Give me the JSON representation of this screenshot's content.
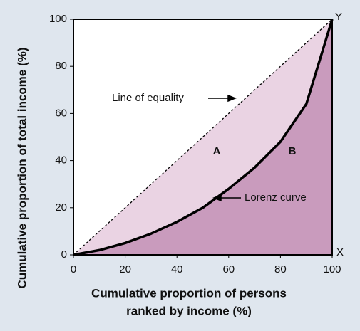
{
  "chart_data": {
    "type": "lorenz",
    "x_label": [
      "Cumulative proportion of persons",
      "ranked by income (%)"
    ],
    "y_label": "Cumulative proportion of total income (%)",
    "xlim": [
      0,
      100
    ],
    "ylim": [
      0,
      100
    ],
    "xticks": [
      0,
      20,
      40,
      60,
      80,
      100
    ],
    "yticks": [
      0,
      20,
      40,
      60,
      80,
      100
    ],
    "series": [
      {
        "name": "Line of equality",
        "color": "#000000",
        "fill": "#ead3e3",
        "x": [
          0,
          100
        ],
        "values": [
          0,
          100
        ]
      },
      {
        "name": "Lorenz curve",
        "color": "#000000",
        "fill": "#c99bbd",
        "x": [
          0,
          10,
          20,
          30,
          40,
          50,
          60,
          70,
          80,
          90,
          100
        ],
        "values": [
          0,
          2,
          5,
          9,
          14,
          20,
          28,
          37,
          48,
          64,
          100
        ]
      }
    ],
    "annotations": [
      "A",
      "B",
      "X",
      "Y"
    ]
  }
}
